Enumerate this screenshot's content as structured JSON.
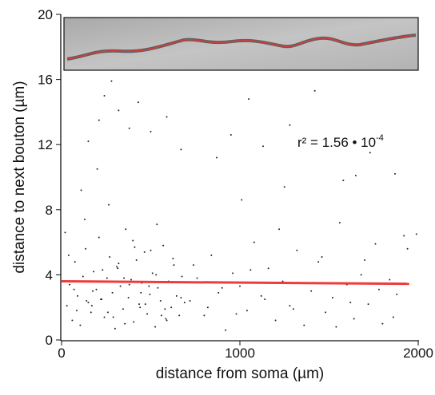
{
  "chart_data": {
    "type": "scatter",
    "x_label": "distance from soma (µm)",
    "y_label": "distance to next bouton (µm)",
    "annotation": {
      "text": "r² = 1.56 • 10",
      "superscript": "-4"
    },
    "xlim": [
      0,
      2000
    ],
    "xticks": [
      0,
      1000,
      2000
    ],
    "ylim": [
      0,
      20
    ],
    "yticks": [
      0,
      4,
      8,
      12,
      16,
      20
    ],
    "series": [
      {
        "color": "#222222",
        "x": [
          30,
          45,
          60,
          75,
          90,
          105,
          120,
          135,
          150,
          165,
          180,
          195,
          210,
          225,
          240,
          255,
          270,
          285,
          300,
          315,
          330,
          345,
          360,
          375,
          390,
          405,
          420,
          435,
          450,
          465,
          480,
          495,
          510,
          525,
          540,
          555,
          570,
          585,
          600,
          615,
          630,
          645,
          660,
          675,
          690,
          40,
          85,
          130,
          175,
          220,
          265,
          310,
          355,
          400,
          445,
          490,
          535,
          580,
          625,
          670,
          50,
          110,
          170,
          230,
          290,
          350,
          410,
          470,
          530,
          590,
          20,
          70,
          140,
          200,
          260,
          320,
          380,
          440,
          500,
          560,
          720,
          760,
          800,
          840,
          880,
          920,
          960,
          1000,
          1040,
          1080,
          1120,
          1160,
          1200,
          1240,
          1280,
          1320,
          1360,
          1400,
          1440,
          1480,
          1520,
          1560,
          1600,
          1640,
          1680,
          1720,
          1760,
          1800,
          1840,
          1880,
          1920,
          740,
          820,
          900,
          980,
          1060,
          1140,
          1220,
          1300,
          1380,
          1460,
          1540,
          1620,
          1700,
          1780,
          1860,
          1940,
          1010,
          1250,
          1650,
          280,
          320,
          430,
          210,
          590,
          150,
          380,
          950,
          1050,
          1420,
          1280,
          1730,
          1870,
          240,
          500,
          670,
          870,
          1130,
          1580,
          1990
        ],
        "values": [
          2.1,
          3.4,
          1.2,
          4.8,
          2.7,
          0.9,
          3.9,
          5.6,
          2.3,
          1.7,
          4.2,
          3.1,
          6.3,
          2.5,
          1.4,
          3.8,
          5.1,
          2.9,
          0.7,
          4.4,
          3.3,
          1.9,
          6.8,
          2.6,
          3.7,
          1.1,
          4.9,
          2.2,
          3.5,
          5.4,
          1.6,
          2.8,
          4.1,
          0.8,
          3.2,
          2.4,
          5.8,
          1.3,
          3.6,
          2.0,
          4.6,
          2.7,
          1.5,
          3.9,
          2.3,
          5.2,
          1.8,
          7.4,
          3.0,
          2.5,
          8.3,
          4.5,
          1.0,
          6.1,
          2.9,
          3.3,
          7.1,
          1.9,
          5.0,
          2.6,
          3.6,
          9.2,
          2.1,
          4.3,
          1.4,
          3.8,
          5.7,
          2.2,
          4.0,
          1.2,
          6.6,
          3.1,
          2.4,
          10.5,
          1.7,
          4.7,
          3.4,
          2.0,
          5.5,
          1.5,
          2.4,
          3.8,
          1.5,
          5.2,
          2.9,
          0.6,
          4.1,
          3.3,
          1.8,
          6.0,
          2.7,
          4.4,
          1.2,
          3.6,
          2.1,
          5.5,
          0.9,
          3.0,
          4.8,
          1.7,
          2.6,
          7.2,
          3.4,
          1.3,
          4.0,
          2.2,
          5.9,
          1.0,
          3.7,
          2.8,
          6.4,
          4.6,
          2.0,
          3.2,
          1.6,
          4.3,
          2.5,
          6.8,
          1.9,
          3.5,
          5.1,
          0.8,
          2.3,
          4.9,
          3.1,
          1.4,
          5.6,
          8.6,
          9.4,
          10.1,
          15.9,
          14.1,
          14.6,
          13.5,
          13.7,
          12.2,
          13.0,
          12.6,
          14.8,
          15.3,
          13.2,
          11.5,
          10.2,
          15.0,
          12.8,
          11.7,
          11.2,
          11.9,
          9.8,
          6.5
        ]
      },
      {
        "type": "line",
        "color": "#ee3b3b",
        "x": [
          0,
          1950
        ],
        "values": [
          3.6,
          3.45
        ]
      }
    ]
  }
}
